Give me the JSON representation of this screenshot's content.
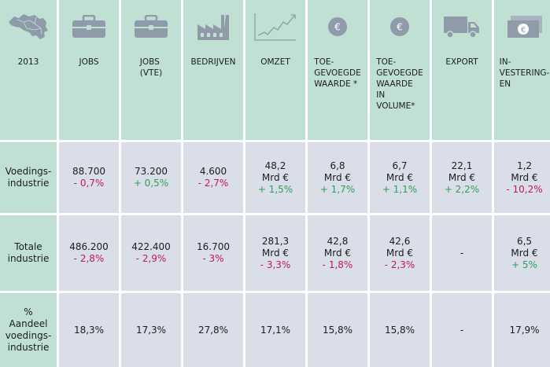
{
  "colors": {
    "header_bg": "#bfe0d2",
    "cell_bg": "#d9dee8",
    "icon_fill": "#8f9ba9",
    "positive": "#2e9e5b",
    "negative": "#c2185b"
  },
  "header": {
    "year": "2013",
    "columns": [
      {
        "icon": "briefcase-icon",
        "label": "JOBS"
      },
      {
        "icon": "briefcase-icon",
        "label": "JOBS\n(VTE)"
      },
      {
        "icon": "factory-icon",
        "label": "BEDRIJVEN"
      },
      {
        "icon": "line-chart-icon",
        "label": "OMZET"
      },
      {
        "icon": "euro-coin-icon",
        "label": "TOE-\nGEVOEGDE\nWAARDE *"
      },
      {
        "icon": "euro-coin-icon",
        "label": "TOE-\nGEVOEGDE\nWAARDE\nIN\nVOLUME*"
      },
      {
        "icon": "truck-icon",
        "label": "EXPORT"
      },
      {
        "icon": "banknote-icon",
        "label": "IN-\nVESTERING-\nEN"
      }
    ]
  },
  "rows": [
    {
      "label": "Voedings-\nindustrie",
      "cells": [
        {
          "value": "88.700",
          "change": "- 0,7%"
        },
        {
          "value": "73.200",
          "change": "+ 0,5%"
        },
        {
          "value": "4.600",
          "change": "- 2,7%"
        },
        {
          "value": "48,2",
          "unit": "Mrd €",
          "change": "+ 1,5%"
        },
        {
          "value": "6,8",
          "unit": "Mrd €",
          "change": "+ 1,7%"
        },
        {
          "value": "6,7",
          "unit": "Mrd €",
          "change": "+ 1,1%"
        },
        {
          "value": "22,1",
          "unit": "Mrd €",
          "change": "+ 2,2%"
        },
        {
          "value": "1,2",
          "unit": "Mrd €",
          "change": "- 10,2%"
        }
      ]
    },
    {
      "label": "Totale\nindustrie",
      "cells": [
        {
          "value": "486.200",
          "change": "- 2,8%"
        },
        {
          "value": "422.400",
          "change": "- 2,9%"
        },
        {
          "value": "16.700",
          "change": "- 3%"
        },
        {
          "value": "281,3",
          "unit": "Mrd €",
          "change": "- 3,3%"
        },
        {
          "value": "42,8",
          "unit": "Mrd €",
          "change": "- 1,8%"
        },
        {
          "value": "42,6",
          "unit": "Mrd €",
          "change": "- 2,3%"
        },
        {
          "value": "-"
        },
        {
          "value": "6,5",
          "unit": "Mrd €",
          "change": "+ 5%"
        }
      ]
    },
    {
      "label": "%\nAandeel\nvoedings-\nindustrie",
      "cells": [
        {
          "value": "18,3%"
        },
        {
          "value": "17,3%"
        },
        {
          "value": "27,8%"
        },
        {
          "value": "17,1%"
        },
        {
          "value": "15,8%"
        },
        {
          "value": "15,8%"
        },
        {
          "value": "-"
        },
        {
          "value": "17,9%"
        }
      ]
    }
  ]
}
